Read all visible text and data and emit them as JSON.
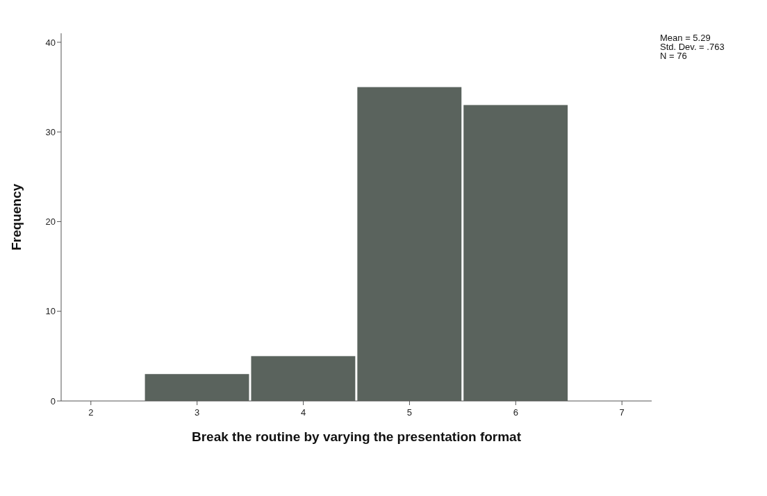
{
  "chart_data": {
    "type": "histogram",
    "xlabel": "Break the routine by varying the presentation format",
    "ylabel": "Frequency",
    "bins": [
      2.5,
      3.5,
      4.5,
      5.5,
      6.5
    ],
    "values": [
      3,
      5,
      35,
      33
    ],
    "color": "#5a635d",
    "xlim": [
      1.72,
      7.28
    ],
    "xticks": [
      2,
      3,
      4,
      5,
      6,
      7
    ],
    "ylim": [
      0,
      41
    ],
    "yticks": [
      0,
      10,
      20,
      30,
      40
    ],
    "annotations": [
      "Mean = 5.29",
      "Std. Dev. = .763",
      "N = 76"
    ]
  }
}
